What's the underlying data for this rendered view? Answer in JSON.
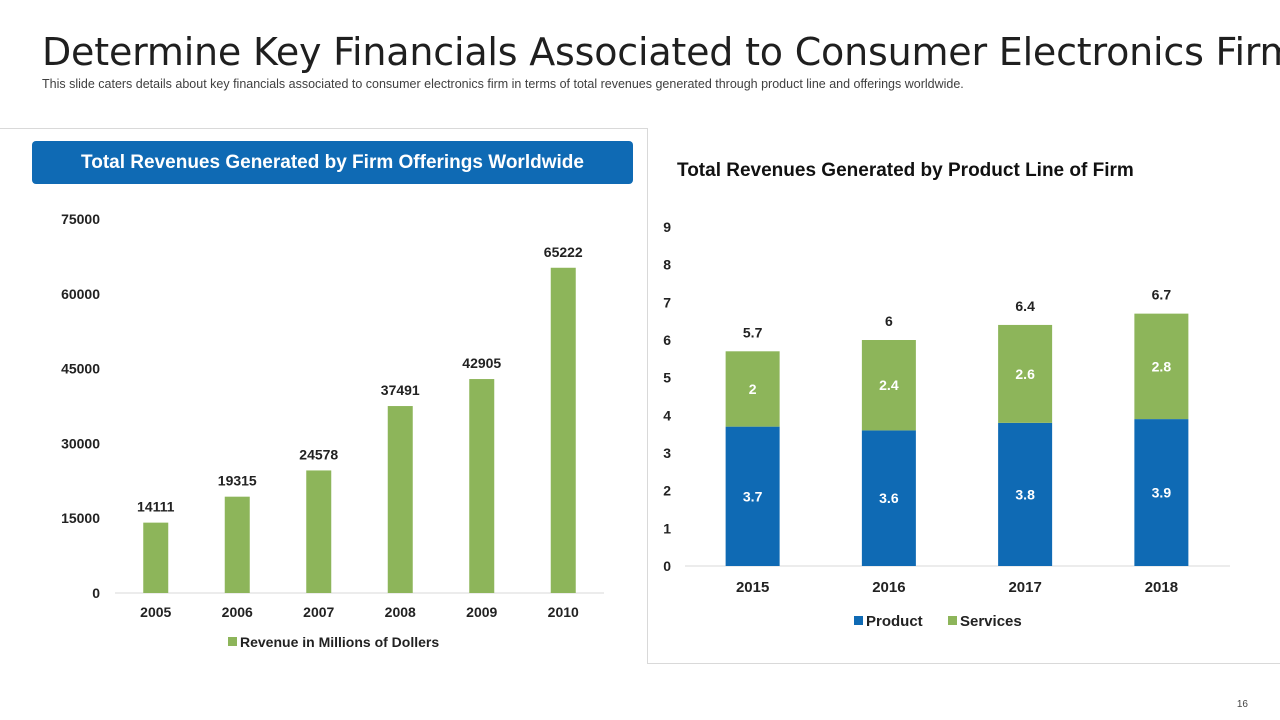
{
  "slide": {
    "title": "Determine Key Financials Associated to Consumer Electronics Firm",
    "subtitle": "This slide caters details about key financials associated to consumer electronics firm in terms of total revenues generated through product line and offerings worldwide.",
    "page_number": "16"
  },
  "colors": {
    "blue": "#0f6ab4",
    "green": "#8db55a",
    "gridline": "#d9d9d9"
  },
  "chart_data": [
    {
      "type": "bar",
      "title": "Total Revenues Generated by Firm Offerings Worldwide",
      "categories": [
        "2005",
        "2006",
        "2007",
        "2008",
        "2009",
        "2010"
      ],
      "series": [
        {
          "name": "Revenue in Millions of Dollers",
          "values": [
            14111,
            19315,
            24578,
            37491,
            42905,
            65222
          ]
        }
      ],
      "ylim": [
        0,
        75000
      ],
      "yticks": [
        0,
        15000,
        30000,
        45000,
        60000,
        75000
      ],
      "legend": "bottom"
    },
    {
      "type": "bar",
      "stacked": true,
      "title": "Total Revenues Generated by Product Line of Firm",
      "categories": [
        "2015",
        "2016",
        "2017",
        "2018"
      ],
      "series": [
        {
          "name": "Product",
          "values": [
            3.7,
            3.6,
            3.8,
            3.9
          ]
        },
        {
          "name": "Services",
          "values": [
            2,
            2.4,
            2.6,
            2.8
          ]
        }
      ],
      "totals": [
        5.7,
        6,
        6.4,
        6.7
      ],
      "ylim": [
        0,
        9
      ],
      "yticks": [
        0,
        1,
        2,
        3,
        4,
        5,
        6,
        7,
        8,
        9
      ],
      "legend": "bottom"
    }
  ]
}
